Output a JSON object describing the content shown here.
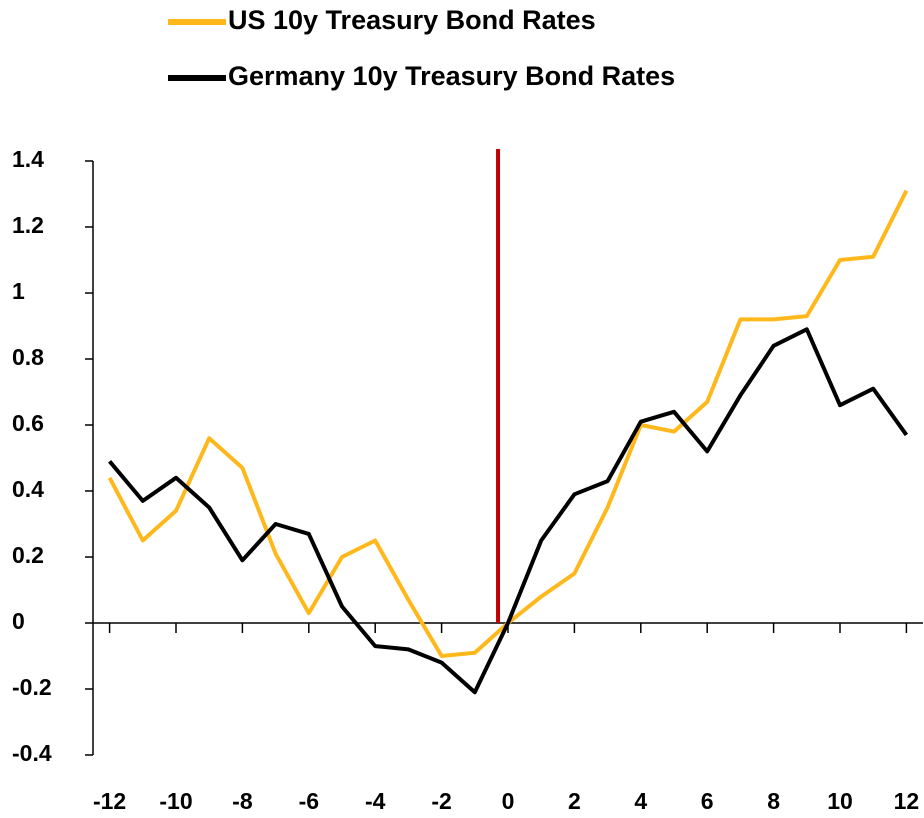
{
  "chart_data": {
    "type": "line",
    "x": [
      -12,
      -11,
      -10,
      -9,
      -8,
      -7,
      -6,
      -5,
      -4,
      -3,
      -2,
      -1,
      0,
      1,
      2,
      3,
      4,
      5,
      6,
      7,
      8,
      9,
      10,
      11,
      12
    ],
    "series": [
      {
        "name": "US 10y Treasury Bond Rates",
        "color": "#ffb81c",
        "values": [
          0.44,
          0.25,
          0.34,
          0.56,
          0.47,
          0.21,
          0.03,
          0.2,
          0.25,
          0.07,
          -0.1,
          -0.09,
          0.0,
          0.08,
          0.15,
          0.35,
          0.6,
          0.58,
          0.67,
          0.92,
          0.92,
          0.93,
          1.1,
          1.11,
          1.31
        ]
      },
      {
        "name": "Germany 10y Treasury Bond Rates",
        "color": "#000000",
        "values": [
          0.49,
          0.37,
          0.44,
          0.35,
          0.19,
          0.3,
          0.27,
          0.05,
          -0.07,
          -0.08,
          -0.12,
          -0.21,
          0.0,
          0.25,
          0.39,
          0.43,
          0.61,
          0.64,
          0.52,
          0.69,
          0.84,
          0.89,
          0.66,
          0.71,
          0.57
        ]
      }
    ],
    "xlim": [
      -12.5,
      12.5
    ],
    "xticks": [
      -12,
      -10,
      -8,
      -6,
      -4,
      -2,
      0,
      2,
      4,
      6,
      8,
      10,
      12
    ],
    "ylim": [
      -0.4,
      1.4
    ],
    "yticks": [
      -0.4,
      -0.2,
      0,
      0.2,
      0.4,
      0.6,
      0.8,
      1,
      1.2,
      1.4
    ],
    "event_x": -0.3,
    "event_color": "#c00000",
    "legend": "top-left"
  }
}
